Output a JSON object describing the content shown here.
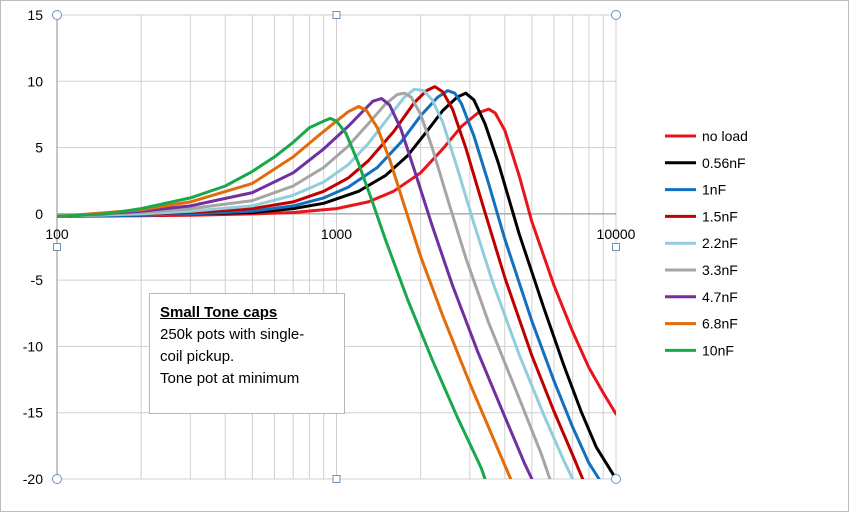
{
  "chart_data": {
    "type": "line",
    "x_scale": "log",
    "xlim": [
      100,
      10000
    ],
    "ylim": [
      -20,
      15
    ],
    "x_ticks": [
      {
        "value": 100,
        "label": "100"
      },
      {
        "value": 1000,
        "label": "1000"
      },
      {
        "value": 10000,
        "label": "10000"
      }
    ],
    "y_ticks": [
      {
        "value": 15,
        "label": "15"
      },
      {
        "value": 10,
        "label": "10"
      },
      {
        "value": 5,
        "label": "5"
      },
      {
        "value": 0,
        "label": "0"
      },
      {
        "value": -5,
        "label": "-5"
      },
      {
        "value": -10,
        "label": "-10"
      },
      {
        "value": -15,
        "label": "-15"
      },
      {
        "value": -20,
        "label": "-20"
      }
    ],
    "grid": true,
    "legend_position": "right",
    "series": [
      {
        "name": "no load",
        "color": "#e8161b",
        "points": [
          [
            100,
            -0.2
          ],
          [
            200,
            -0.15
          ],
          [
            300,
            -0.1
          ],
          [
            500,
            0
          ],
          [
            700,
            0.1
          ],
          [
            1000,
            0.4
          ],
          [
            1300,
            0.9
          ],
          [
            1600,
            1.7
          ],
          [
            2000,
            3.1
          ],
          [
            2400,
            4.9
          ],
          [
            2800,
            6.6
          ],
          [
            3200,
            7.6
          ],
          [
            3500,
            7.9
          ],
          [
            3700,
            7.6
          ],
          [
            4000,
            6.3
          ],
          [
            4500,
            2.9
          ],
          [
            5000,
            -0.6
          ],
          [
            6000,
            -5.4
          ],
          [
            7000,
            -8.9
          ],
          [
            8000,
            -11.6
          ],
          [
            9000,
            -13.5
          ],
          [
            10000,
            -15.1
          ]
        ]
      },
      {
        "name": "0.56nF",
        "color": "#000000",
        "points": [
          [
            100,
            -0.2
          ],
          [
            200,
            -0.1
          ],
          [
            300,
            0
          ],
          [
            500,
            0.1
          ],
          [
            700,
            0.4
          ],
          [
            900,
            0.8
          ],
          [
            1200,
            1.7
          ],
          [
            1500,
            2.9
          ],
          [
            1800,
            4.4
          ],
          [
            2100,
            6.2
          ],
          [
            2400,
            7.8
          ],
          [
            2700,
            8.8
          ],
          [
            2900,
            9.1
          ],
          [
            3100,
            8.6
          ],
          [
            3400,
            6.8
          ],
          [
            3800,
            3.8
          ],
          [
            4500,
            -1.5
          ],
          [
            5500,
            -7
          ],
          [
            6500,
            -11.4
          ],
          [
            7500,
            -14.9
          ],
          [
            8500,
            -17.6
          ],
          [
            10000,
            -20
          ]
        ]
      },
      {
        "name": "1nF",
        "color": "#1370c0",
        "points": [
          [
            100,
            -0.2
          ],
          [
            200,
            -0.1
          ],
          [
            300,
            0
          ],
          [
            500,
            0.2
          ],
          [
            700,
            0.6
          ],
          [
            900,
            1.2
          ],
          [
            1100,
            2
          ],
          [
            1400,
            3.5
          ],
          [
            1700,
            5.4
          ],
          [
            2000,
            7.4
          ],
          [
            2300,
            8.8
          ],
          [
            2500,
            9.3
          ],
          [
            2650,
            9.1
          ],
          [
            2800,
            8.3
          ],
          [
            3100,
            5.9
          ],
          [
            3500,
            2.3
          ],
          [
            4000,
            -1.9
          ],
          [
            5000,
            -8.1
          ],
          [
            6000,
            -12.6
          ],
          [
            7000,
            -16.1
          ],
          [
            8000,
            -18.8
          ],
          [
            8700,
            -20
          ]
        ]
      },
      {
        "name": "1.5nF",
        "color": "#c00000",
        "points": [
          [
            100,
            -0.2
          ],
          [
            200,
            0
          ],
          [
            300,
            0.1
          ],
          [
            500,
            0.4
          ],
          [
            700,
            0.9
          ],
          [
            900,
            1.7
          ],
          [
            1100,
            2.7
          ],
          [
            1300,
            4
          ],
          [
            1600,
            6.2
          ],
          [
            1900,
            8.4
          ],
          [
            2100,
            9.3
          ],
          [
            2250,
            9.6
          ],
          [
            2400,
            9.2
          ],
          [
            2600,
            7.9
          ],
          [
            2900,
            5
          ],
          [
            3300,
            1
          ],
          [
            4000,
            -4.8
          ],
          [
            5000,
            -10.7
          ],
          [
            6000,
            -14.9
          ],
          [
            7000,
            -18.2
          ],
          [
            7600,
            -20
          ]
        ]
      },
      {
        "name": "2.2nF",
        "color": "#92cddc",
        "points": [
          [
            100,
            -0.2
          ],
          [
            200,
            0
          ],
          [
            300,
            0.2
          ],
          [
            500,
            0.6
          ],
          [
            700,
            1.4
          ],
          [
            900,
            2.4
          ],
          [
            1100,
            3.7
          ],
          [
            1300,
            5.3
          ],
          [
            1500,
            7
          ],
          [
            1750,
            8.8
          ],
          [
            1900,
            9.4
          ],
          [
            2050,
            9.3
          ],
          [
            2200,
            8.6
          ],
          [
            2400,
            6.9
          ],
          [
            2700,
            3.5
          ],
          [
            3100,
            -0.7
          ],
          [
            3600,
            -5
          ],
          [
            4500,
            -10.6
          ],
          [
            5500,
            -15.1
          ],
          [
            6500,
            -18.6
          ],
          [
            7000,
            -20
          ]
        ]
      },
      {
        "name": "3.3nF",
        "color": "#a5a5a5",
        "points": [
          [
            100,
            -0.2
          ],
          [
            200,
            0.1
          ],
          [
            300,
            0.4
          ],
          [
            500,
            1
          ],
          [
            700,
            2.1
          ],
          [
            900,
            3.5
          ],
          [
            1100,
            5.1
          ],
          [
            1300,
            6.8
          ],
          [
            1500,
            8.3
          ],
          [
            1650,
            9
          ],
          [
            1750,
            9.1
          ],
          [
            1850,
            8.8
          ],
          [
            2000,
            7.5
          ],
          [
            2200,
            5
          ],
          [
            2500,
            1.1
          ],
          [
            2900,
            -3.3
          ],
          [
            3500,
            -8.2
          ],
          [
            4500,
            -13.9
          ],
          [
            5400,
            -18.1
          ],
          [
            5800,
            -20
          ]
        ]
      },
      {
        "name": "4.7nF",
        "color": "#7030a0",
        "points": [
          [
            100,
            -0.2
          ],
          [
            200,
            0.2
          ],
          [
            300,
            0.6
          ],
          [
            500,
            1.6
          ],
          [
            700,
            3.1
          ],
          [
            900,
            4.9
          ],
          [
            1100,
            6.6
          ],
          [
            1250,
            7.8
          ],
          [
            1350,
            8.5
          ],
          [
            1450,
            8.7
          ],
          [
            1550,
            8.2
          ],
          [
            1700,
            6.4
          ],
          [
            1900,
            3.3
          ],
          [
            2200,
            -0.9
          ],
          [
            2600,
            -5.4
          ],
          [
            3200,
            -10.4
          ],
          [
            4000,
            -15.3
          ],
          [
            4700,
            -18.8
          ],
          [
            5000,
            -20
          ]
        ]
      },
      {
        "name": "6.8nF",
        "color": "#e36c0a",
        "points": [
          [
            100,
            -0.2
          ],
          [
            200,
            0.3
          ],
          [
            300,
            0.9
          ],
          [
            500,
            2.3
          ],
          [
            700,
            4.3
          ],
          [
            850,
            5.8
          ],
          [
            1000,
            7
          ],
          [
            1100,
            7.7
          ],
          [
            1200,
            8.1
          ],
          [
            1280,
            7.8
          ],
          [
            1400,
            6.5
          ],
          [
            1550,
            4.1
          ],
          [
            1750,
            0.6
          ],
          [
            2000,
            -3.2
          ],
          [
            2400,
            -7.7
          ],
          [
            3000,
            -12.8
          ],
          [
            3600,
            -16.7
          ],
          [
            4200,
            -20
          ]
        ]
      },
      {
        "name": "10nF",
        "color": "#19a84e",
        "points": [
          [
            100,
            -0.2
          ],
          [
            150,
            0
          ],
          [
            200,
            0.4
          ],
          [
            300,
            1.2
          ],
          [
            400,
            2.1
          ],
          [
            500,
            3.2
          ],
          [
            600,
            4.3
          ],
          [
            700,
            5.4
          ],
          [
            800,
            6.5
          ],
          [
            900,
            7
          ],
          [
            950,
            7.2
          ],
          [
            1000,
            7
          ],
          [
            1080,
            6.1
          ],
          [
            1200,
            3.8
          ],
          [
            1350,
            0.8
          ],
          [
            1500,
            -2
          ],
          [
            1800,
            -6.5
          ],
          [
            2200,
            -11
          ],
          [
            2700,
            -15.3
          ],
          [
            3300,
            -19.2
          ],
          [
            3400,
            -20
          ]
        ]
      }
    ]
  },
  "note": {
    "title": "Small Tone caps",
    "lines": [
      "250k pots with single-",
      "coil pickup.",
      "Tone pot at minimum"
    ]
  }
}
